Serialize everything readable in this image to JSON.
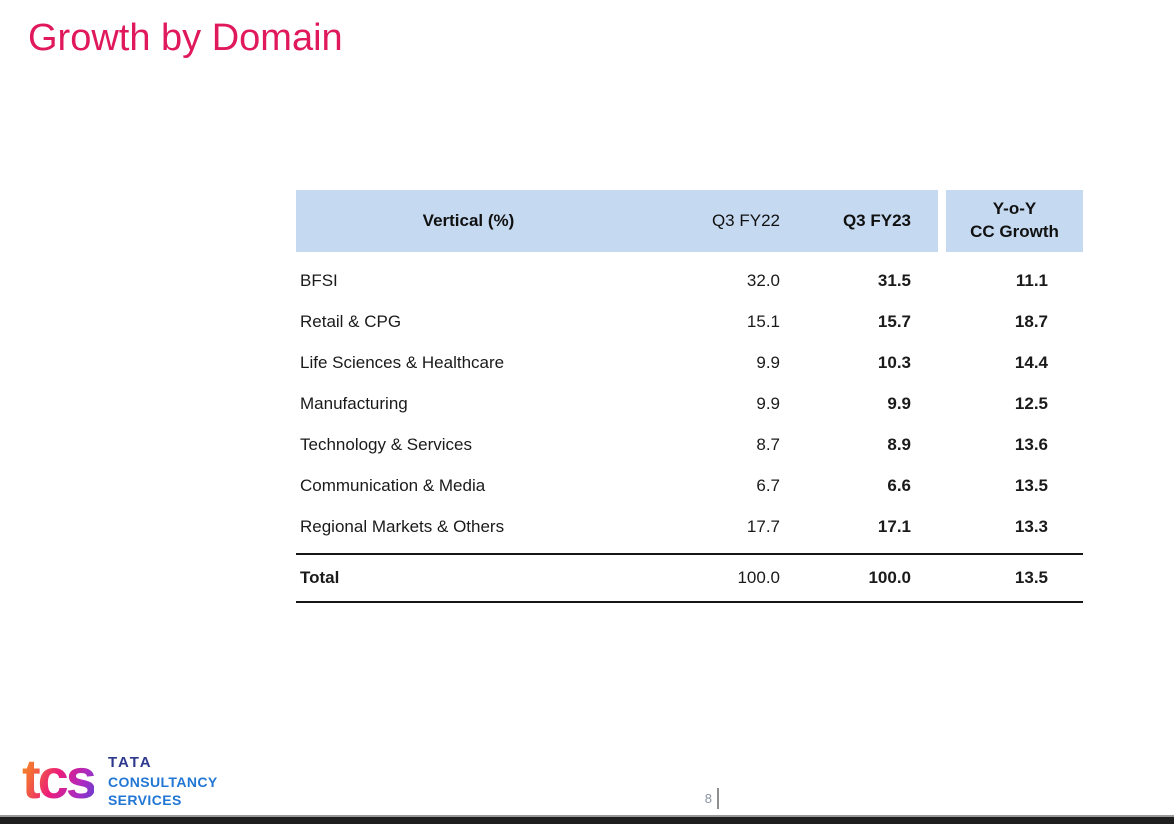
{
  "slide": {
    "title": "Growth by Domain"
  },
  "footer": {
    "page_number": "8"
  },
  "logo": {
    "script_text": "tcs",
    "brand_line1": "TATA",
    "brand_line2": "CONSULTANCY",
    "brand_line3": "SERVICES"
  },
  "colors": {
    "title_pink": "#E0185C",
    "header_blue": "#C5D9F1",
    "tata_navy": "#2E388E",
    "tcs_blue": "#2277D4",
    "rule_black": "#161616"
  },
  "chart_data": {
    "type": "table",
    "title": "Growth by Domain",
    "columns": [
      "Vertical (%)",
      "Q3 FY22",
      "Q3 FY23",
      "Y-o-Y CC Growth"
    ],
    "header": {
      "vertical": "Vertical (%)",
      "q3fy22": "Q3 FY22",
      "q3fy23": "Q3 FY23",
      "yoy_line1": "Y-o-Y",
      "yoy_line2": "CC Growth"
    },
    "rows": [
      {
        "label": "BFSI",
        "q3fy22": "32.0",
        "q3fy23": "31.5",
        "yoy": "11.1"
      },
      {
        "label": "Retail & CPG",
        "q3fy22": "15.1",
        "q3fy23": "15.7",
        "yoy": "18.7"
      },
      {
        "label": "Life Sciences & Healthcare",
        "q3fy22": "9.9",
        "q3fy23": "10.3",
        "yoy": "14.4"
      },
      {
        "label": "Manufacturing",
        "q3fy22": "9.9",
        "q3fy23": "9.9",
        "yoy": "12.5"
      },
      {
        "label": "Technology & Services",
        "q3fy22": "8.7",
        "q3fy23": "8.9",
        "yoy": "13.6"
      },
      {
        "label": "Communication & Media",
        "q3fy22": "6.7",
        "q3fy23": "6.6",
        "yoy": "13.5"
      },
      {
        "label": "Regional Markets & Others",
        "q3fy22": "17.7",
        "q3fy23": "17.1",
        "yoy": "13.3"
      }
    ],
    "total_row": {
      "label": "Total",
      "q3fy22": "100.0",
      "q3fy23": "100.0",
      "yoy": "13.5"
    }
  }
}
